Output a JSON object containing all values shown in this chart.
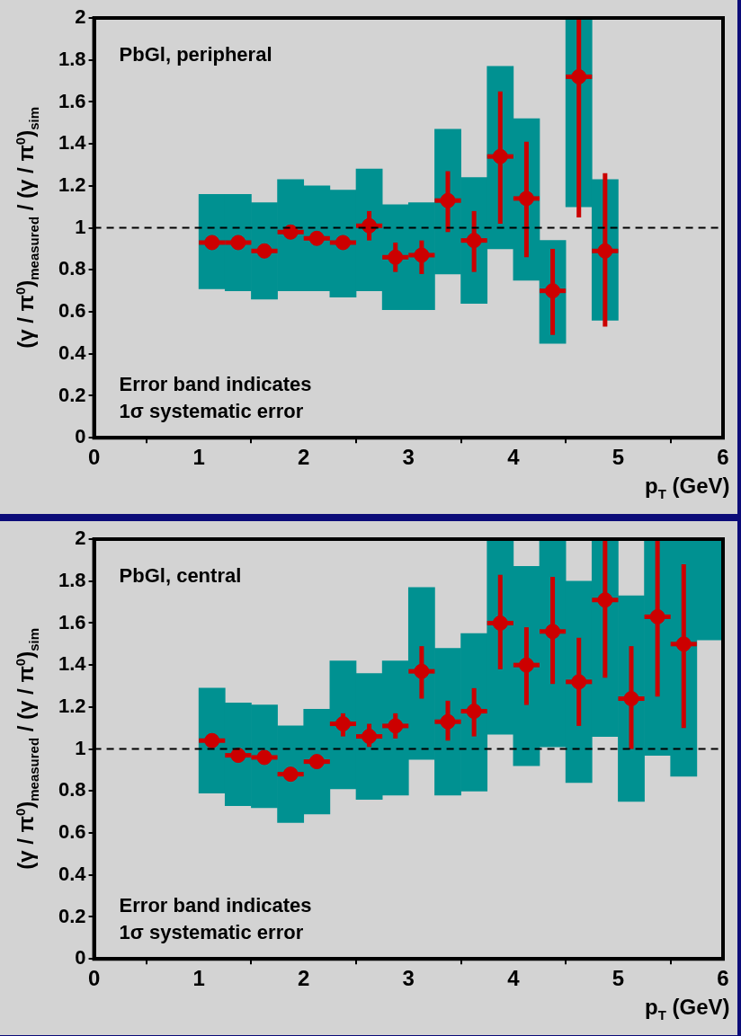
{
  "chart_data": [
    {
      "type": "scatter",
      "xlabel": "p$_{T}$ (GeV)",
      "ylabel": "(γ / π$^{0}$)$_{measured}$ / (γ / π$^{0}$)$_{sim}$",
      "annotations": [
        "PbGl, peripheral",
        "Error band indicates\n1σ systematic error"
      ],
      "xlim": [
        0,
        6
      ],
      "xticks": [
        0,
        1,
        2,
        3,
        4,
        5,
        6
      ],
      "ylim": [
        0,
        2
      ],
      "yticks": [
        0,
        0.2,
        0.4,
        0.6,
        0.8,
        1,
        1.2,
        1.4,
        1.6,
        1.8,
        2
      ],
      "grid": false,
      "legend": false,
      "marker": "circle",
      "ref_lines": [
        {
          "axis": "y",
          "value": 1,
          "line_style": "dashed",
          "color": "#000000"
        }
      ],
      "series": [
        {
          "type": "bar",
          "color": "#009191",
          "x": [
            1.125,
            1.375,
            1.625,
            1.875,
            2.125,
            2.375,
            2.625,
            2.875,
            3.125,
            3.375,
            3.625,
            3.875,
            4.125,
            4.375,
            4.625,
            4.875
          ],
          "base": [
            0.71,
            0.7,
            0.66,
            0.7,
            0.7,
            0.67,
            0.7,
            0.61,
            0.61,
            0.78,
            0.64,
            0.9,
            0.75,
            0.45,
            1.1,
            0.56
          ],
          "values": [
            0.45,
            0.46,
            0.46,
            0.53,
            0.5,
            0.51,
            0.58,
            0.5,
            0.51,
            0.69,
            0.6,
            0.87,
            0.77,
            0.49,
            0.9,
            0.67
          ]
        },
        {
          "color": "#cc0000",
          "x": [
            1.125,
            1.375,
            1.625,
            1.875,
            2.125,
            2.375,
            2.625,
            2.875,
            3.125,
            3.375,
            3.625,
            3.875,
            4.125,
            4.375,
            4.625,
            4.875
          ],
          "values": [
            0.93,
            0.93,
            0.89,
            0.98,
            0.95,
            0.93,
            1.01,
            0.86,
            0.87,
            1.13,
            0.94,
            1.34,
            1.14,
            0.7,
            1.72,
            0.89
          ],
          "errors": [
            null,
            null,
            null,
            null,
            null,
            null,
            [
              0.94,
              1.08
            ],
            [
              0.79,
              0.93
            ],
            [
              0.78,
              0.94
            ],
            [
              0.98,
              1.27
            ],
            [
              0.79,
              1.08
            ],
            [
              1.02,
              1.65
            ],
            [
              0.86,
              1.41
            ],
            [
              0.49,
              0.9
            ],
            [
              1.05,
              2.0
            ],
            [
              0.53,
              1.26
            ]
          ],
          "xerrors": [
            0.125,
            0.125,
            0.125,
            0.125,
            0.125,
            0.125,
            0.125,
            0.125,
            0.125,
            0.125,
            0.125,
            0.125,
            0.125,
            0.125,
            0.125,
            0.125
          ]
        }
      ]
    },
    {
      "type": "scatter",
      "xlabel": "p$_{T}$ (GeV)",
      "ylabel": "(γ / π$^{0}$)$_{measured}$ / (γ / π$^{0}$)$_{sim}$",
      "annotations": [
        "PbGl, central",
        "Error band indicates\n1σ systematic error"
      ],
      "xlim": [
        0,
        6
      ],
      "xticks": [
        0,
        1,
        2,
        3,
        4,
        5,
        6
      ],
      "ylim": [
        0,
        2
      ],
      "yticks": [
        0,
        0.2,
        0.4,
        0.6,
        0.8,
        1,
        1.2,
        1.4,
        1.6,
        1.8,
        2
      ],
      "grid": false,
      "legend": false,
      "marker": "circle",
      "ref_lines": [
        {
          "axis": "y",
          "value": 1,
          "line_style": "dashed",
          "color": "#000000"
        }
      ],
      "series": [
        {
          "type": "bar",
          "color": "#009191",
          "x": [
            1.125,
            1.375,
            1.625,
            1.875,
            2.125,
            2.375,
            2.625,
            2.875,
            3.125,
            3.375,
            3.625,
            3.875,
            4.125,
            4.375,
            4.625,
            4.875,
            5.125,
            5.375,
            5.625,
            5.875
          ],
          "base": [
            0.79,
            0.73,
            0.72,
            0.65,
            0.69,
            0.81,
            0.76,
            0.78,
            0.95,
            0.78,
            0.8,
            1.07,
            0.92,
            1.01,
            0.84,
            1.06,
            0.75,
            0.97,
            0.87,
            1.52
          ],
          "values": [
            0.5,
            0.49,
            0.49,
            0.46,
            0.5,
            0.61,
            0.6,
            0.64,
            0.82,
            0.7,
            0.75,
            0.93,
            0.95,
            0.99,
            0.96,
            0.94,
            0.98,
            1.03,
            1.13,
            0.48
          ]
        },
        {
          "color": "#cc0000",
          "x": [
            1.125,
            1.375,
            1.625,
            1.875,
            2.125,
            2.375,
            2.625,
            2.875,
            3.125,
            3.375,
            3.625,
            3.875,
            4.125,
            4.375,
            4.625,
            4.875,
            5.125,
            5.375,
            5.625
          ],
          "values": [
            1.04,
            0.97,
            0.96,
            0.88,
            0.94,
            1.12,
            1.06,
            1.11,
            1.37,
            1.13,
            1.18,
            1.6,
            1.4,
            1.56,
            1.32,
            1.71,
            1.24,
            1.63,
            1.5
          ],
          "errors": [
            null,
            null,
            null,
            null,
            null,
            [
              1.06,
              1.17
            ],
            [
              1.01,
              1.12
            ],
            [
              1.05,
              1.17
            ],
            [
              1.24,
              1.49
            ],
            [
              1.04,
              1.23
            ],
            [
              1.06,
              1.29
            ],
            [
              1.38,
              1.83
            ],
            [
              1.21,
              1.58
            ],
            [
              1.31,
              1.82
            ],
            [
              1.11,
              1.53
            ],
            [
              1.34,
              2.0
            ],
            [
              1.0,
              1.49
            ],
            [
              1.25,
              2.0
            ],
            [
              1.1,
              1.88
            ]
          ],
          "xerrors": [
            0.125,
            0.125,
            0.125,
            0.125,
            0.125,
            0.125,
            0.125,
            0.125,
            0.125,
            0.125,
            0.125,
            0.125,
            0.125,
            0.125,
            0.125,
            0.125,
            0.125,
            0.125,
            0.125
          ]
        }
      ]
    }
  ]
}
